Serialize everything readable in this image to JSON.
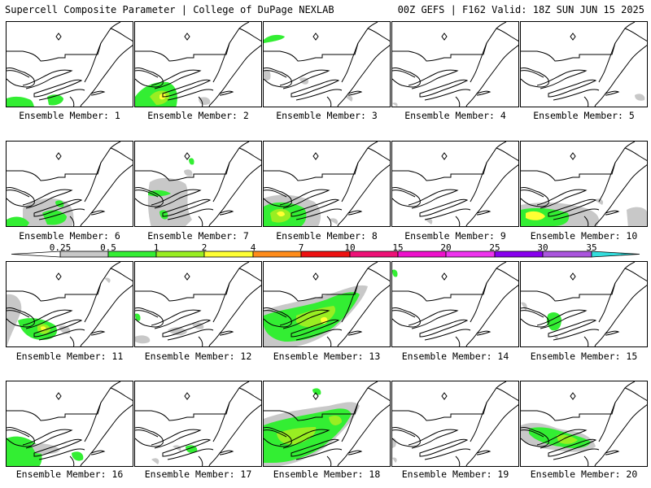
{
  "header": {
    "left_title": "Supercell Composite Parameter | College of DuPage NEXLAB",
    "right_title": "00Z GEFS | F162 Valid: 18Z SUN JUN 15 2025"
  },
  "colors": {
    "gray": "#c8c8c8",
    "green": "#33ee33",
    "lightgreen": "#99ee22",
    "yellow": "#ffff33",
    "coast": "#000000"
  },
  "colorbar": {
    "ticks": [
      "0.25",
      "0.5",
      "1",
      "2",
      "4",
      "7",
      "10",
      "15",
      "20",
      "25",
      "30",
      "35"
    ],
    "colors": [
      "#c8c8c8",
      "#33ee33",
      "#99ee22",
      "#ffff33",
      "#ff8c1a",
      "#ee1111",
      "#ee1177",
      "#ee11cc",
      "#ee33ee",
      "#8800ee",
      "#aa55dd",
      "#33dddd"
    ]
  },
  "members": [
    {
      "label": "Ensemble Member: 1"
    },
    {
      "label": "Ensemble Member: 2"
    },
    {
      "label": "Ensemble Member: 3"
    },
    {
      "label": "Ensemble Member: 4"
    },
    {
      "label": "Ensemble Member: 5"
    },
    {
      "label": "Ensemble Member: 6"
    },
    {
      "label": "Ensemble Member: 7"
    },
    {
      "label": "Ensemble Member: 8"
    },
    {
      "label": "Ensemble Member: 9"
    },
    {
      "label": "Ensemble Member: 10"
    },
    {
      "label": "Ensemble Member: 11"
    },
    {
      "label": "Ensemble Member: 12"
    },
    {
      "label": "Ensemble Member: 13"
    },
    {
      "label": "Ensemble Member: 14"
    },
    {
      "label": "Ensemble Member: 15"
    },
    {
      "label": "Ensemble Member: 16"
    },
    {
      "label": "Ensemble Member: 17"
    },
    {
      "label": "Ensemble Member: 18"
    },
    {
      "label": "Ensemble Member: 19"
    },
    {
      "label": "Ensemble Member: 20"
    }
  ]
}
